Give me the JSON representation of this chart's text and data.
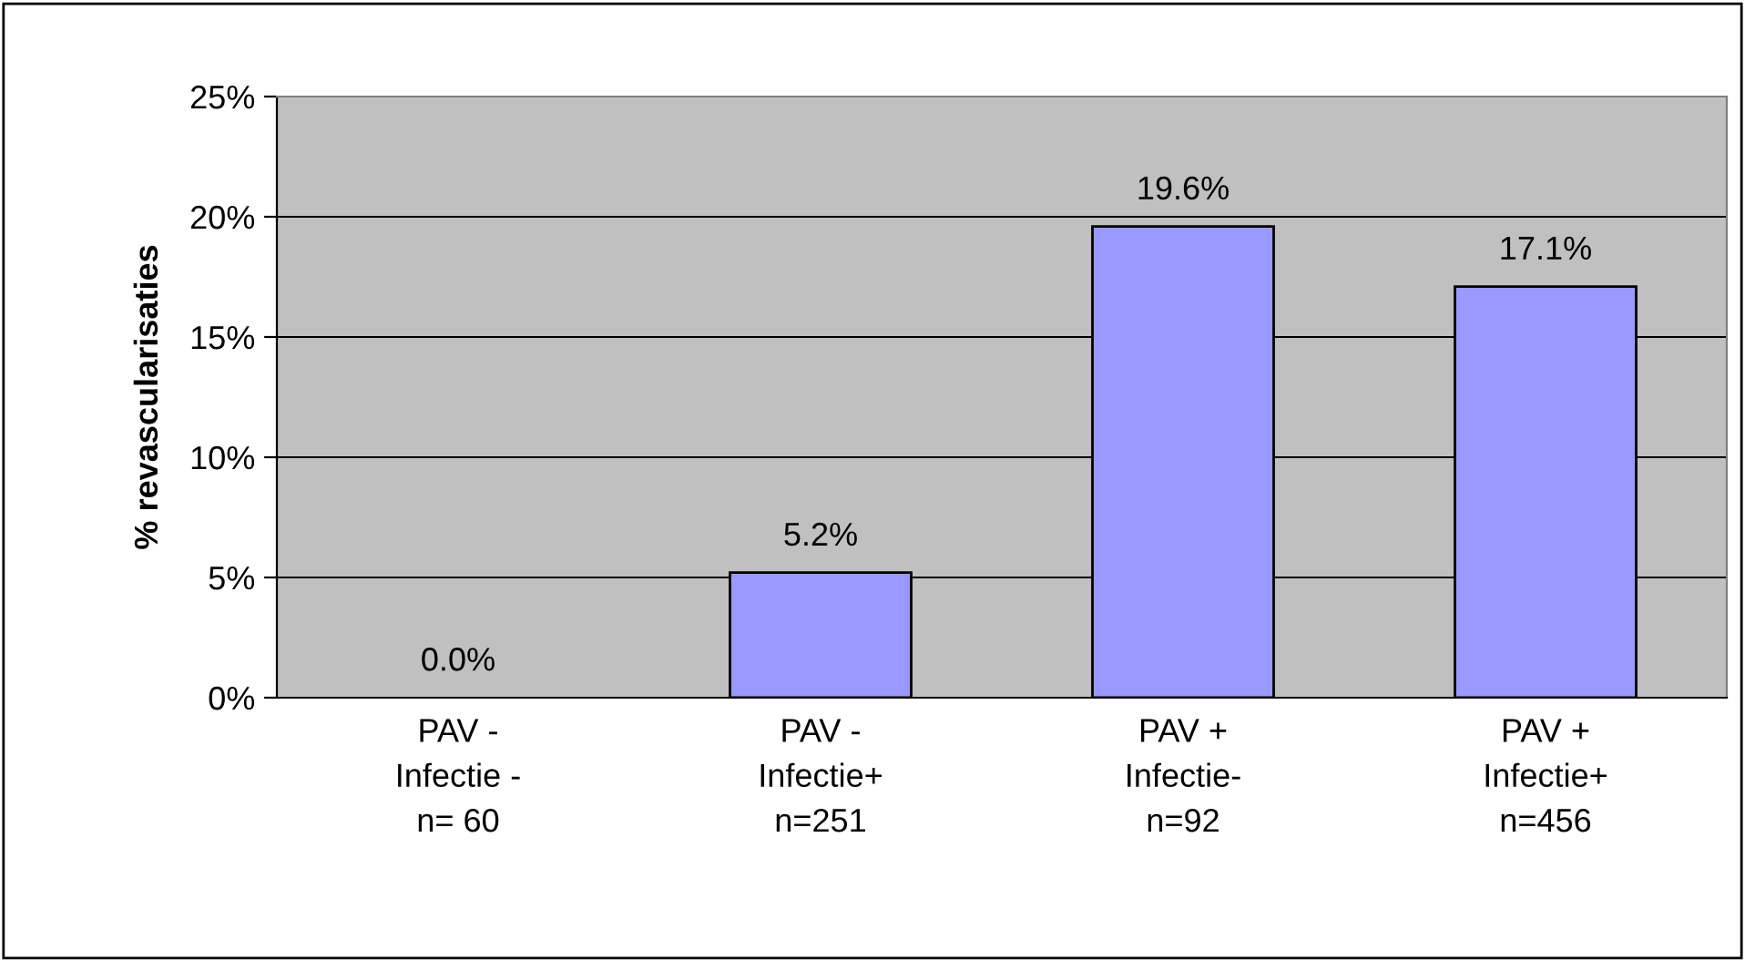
{
  "chart_data": {
    "type": "bar",
    "ylabel": "% revascularisaties",
    "categories": [
      "PAV -\nInfectie -\nn= 60",
      "PAV -\nInfectie+\nn=251",
      "PAV +\nInfectie-\nn=92",
      "PAV +\nInfectie+\nn=456"
    ],
    "values": [
      0.0,
      5.2,
      19.6,
      17.1
    ],
    "value_labels": [
      "0.0%",
      "5.2%",
      "19.6%",
      "17.1%"
    ],
    "color": "#9999ff",
    "ylim": [
      0,
      25
    ],
    "yticks": [
      {
        "value": 0,
        "label": "0%"
      },
      {
        "value": 5,
        "label": "5%"
      },
      {
        "value": 10,
        "label": "10%"
      },
      {
        "value": 15,
        "label": "15%"
      },
      {
        "value": 20,
        "label": "20%"
      },
      {
        "value": 25,
        "label": "25%"
      }
    ],
    "grid": "y",
    "legend": false
  }
}
